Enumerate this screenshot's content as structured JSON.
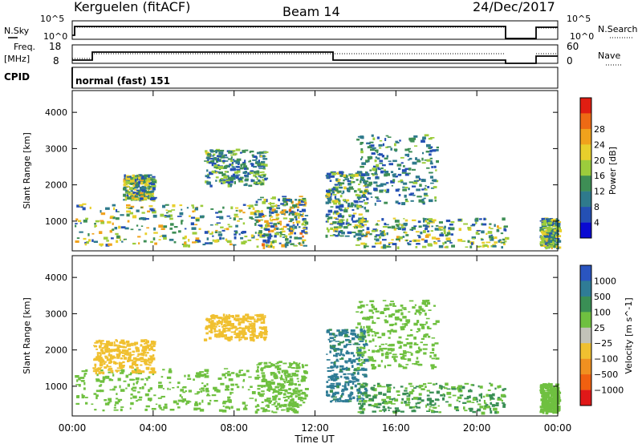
{
  "header": {
    "radar": "Kerguelen (fitACF)",
    "beam": "Beam 14",
    "date": "24/Dec/2017"
  },
  "status_panels": {
    "nsky_label": "N.Sky",
    "nsearch_label": "N.Search",
    "noise_ticks": [
      "10^5",
      "10^0"
    ],
    "freq_label_1": "Freq.",
    "freq_label_2": "[MHz]",
    "freq_ticks": [
      "18",
      "8"
    ],
    "nave_label": "Nave",
    "nave_ticks": [
      "60",
      "0"
    ],
    "cpid_label": "CPID",
    "cpid_value": "normal (fast) 151"
  },
  "colors": {
    "power_scale": [
      "#0a0ad2",
      "#2450b4",
      "#2f7a8c",
      "#3e8e55",
      "#9ccc3c",
      "#e8cf2c",
      "#f0a21c",
      "#ee6a14",
      "#e01e12"
    ],
    "velocity_scale": [
      "#2a55c0",
      "#2f7c96",
      "#3a8f55",
      "#6fc040",
      "#c2c2b8",
      "#f0c030",
      "#f09020",
      "#f06010",
      "#e01818"
    ]
  },
  "chart_data": [
    {
      "type": "heatmap",
      "name": "power",
      "ylabel": "Slant Range [km]",
      "xlabel": "Time UT",
      "x_ticks": [
        "00:00",
        "04:00",
        "08:00",
        "12:00",
        "16:00",
        "20:00",
        "00:00"
      ],
      "x_tick_hours": [
        0,
        4,
        8,
        12,
        16,
        20,
        24
      ],
      "y_ticks": [
        1000,
        2000,
        3000,
        4000
      ],
      "ylim": [
        180,
        4600
      ],
      "xlim": [
        0,
        24
      ],
      "colorbar_label": "Power [dB]",
      "colorbar_ticks": [
        "4",
        "8",
        "12",
        "16",
        "20",
        "24",
        "28"
      ],
      "data_gap_hours": [
        21.5,
        23.0
      ],
      "regions": [
        {
          "t0": 0.1,
          "t1": 9.0,
          "r0": 350,
          "r1": 1500,
          "v": [
            4,
            24
          ]
        },
        {
          "t0": 2.5,
          "t1": 4.0,
          "r0": 1600,
          "r1": 2300,
          "v": [
            4,
            22
          ]
        },
        {
          "t0": 6.5,
          "t1": 9.5,
          "r0": 2000,
          "r1": 3000,
          "v": [
            4,
            18
          ]
        },
        {
          "t0": 9.0,
          "t1": 11.5,
          "r0": 300,
          "r1": 1700,
          "v": [
            4,
            26
          ]
        },
        {
          "t0": 12.5,
          "t1": 14.5,
          "r0": 600,
          "r1": 2400,
          "v": [
            4,
            20
          ]
        },
        {
          "t0": 14.0,
          "t1": 18.0,
          "r0": 1500,
          "r1": 3400,
          "v": [
            4,
            16
          ]
        },
        {
          "t0": 14.0,
          "t1": 21.4,
          "r0": 300,
          "r1": 1100,
          "v": [
            4,
            22
          ]
        },
        {
          "t0": 23.1,
          "t1": 24.0,
          "r0": 300,
          "r1": 1100,
          "v": [
            4,
            22
          ]
        }
      ]
    },
    {
      "type": "heatmap",
      "name": "velocity",
      "ylabel": "Slant Range [km]",
      "xlabel": "Time UT",
      "x_ticks": [
        "00:00",
        "04:00",
        "08:00",
        "12:00",
        "16:00",
        "20:00",
        "00:00"
      ],
      "x_tick_hours": [
        0,
        4,
        8,
        12,
        16,
        20,
        24
      ],
      "y_ticks": [
        1000,
        2000,
        3000,
        4000
      ],
      "ylim": [
        180,
        4600
      ],
      "xlim": [
        0,
        24
      ],
      "colorbar_label": "Velocity [m s^-1]",
      "colorbar_ticks": [
        "1000",
        "500",
        "100",
        "25",
        "−25",
        "−100",
        "−500",
        "−1000"
      ],
      "data_gap_hours": [
        21.5,
        23.0
      ],
      "regions": [
        {
          "t0": 0.1,
          "t1": 9.0,
          "r0": 350,
          "r1": 1500,
          "v": [
            -25,
            25
          ]
        },
        {
          "t0": 1.0,
          "t1": 4.0,
          "r0": 1400,
          "r1": 2300,
          "v": [
            -500,
            -100
          ]
        },
        {
          "t0": 6.5,
          "t1": 9.5,
          "r0": 2300,
          "r1": 3000,
          "v": [
            -500,
            -100
          ]
        },
        {
          "t0": 9.0,
          "t1": 11.5,
          "r0": 300,
          "r1": 1700,
          "v": [
            -25,
            25
          ]
        },
        {
          "t0": 12.5,
          "t1": 14.5,
          "r0": 600,
          "r1": 2600,
          "v": [
            25,
            500
          ]
        },
        {
          "t0": 14.0,
          "t1": 18.0,
          "r0": 1500,
          "r1": 3400,
          "v": [
            -25,
            25
          ]
        },
        {
          "t0": 14.0,
          "t1": 21.4,
          "r0": 300,
          "r1": 1100,
          "v": [
            -25,
            100
          ]
        },
        {
          "t0": 23.1,
          "t1": 24.0,
          "r0": 300,
          "r1": 1100,
          "v": [
            -25,
            25
          ]
        }
      ]
    }
  ]
}
